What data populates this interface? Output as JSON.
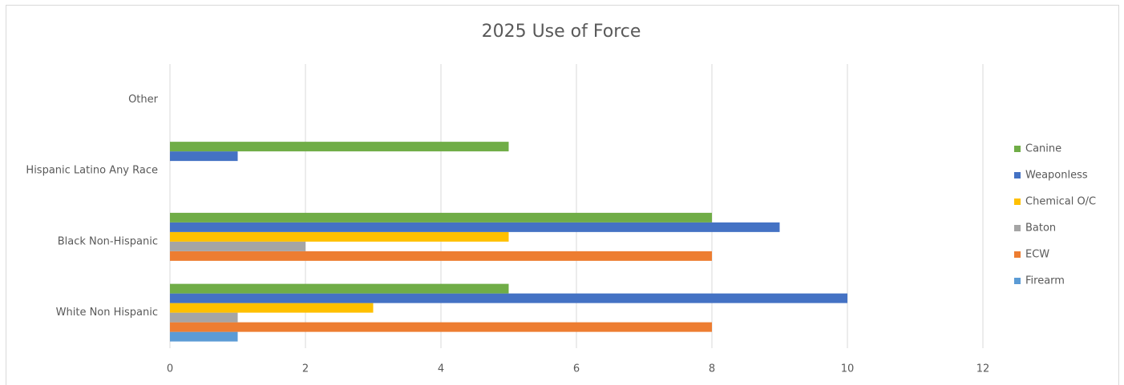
{
  "chart_data": {
    "type": "hbar",
    "title": "2025 Use of Force",
    "categories": [
      "White Non Hispanic",
      "Black Non-Hispanic",
      "Hispanic Latino Any Race",
      "Other"
    ],
    "series": [
      {
        "name": "Firearm",
        "color": "#5b9bd5",
        "values": [
          1,
          0,
          0,
          0
        ]
      },
      {
        "name": "ECW",
        "color": "#ed7d31",
        "values": [
          8,
          8,
          0,
          0
        ]
      },
      {
        "name": "Baton",
        "color": "#a5a5a5",
        "values": [
          1,
          2,
          0,
          0
        ]
      },
      {
        "name": "Chemical O/C",
        "color": "#ffc000",
        "values": [
          3,
          5,
          0,
          0
        ]
      },
      {
        "name": "Weaponless",
        "color": "#4472c4",
        "values": [
          10,
          9,
          1,
          0
        ]
      },
      {
        "name": "Canine",
        "color": "#70ad47",
        "values": [
          5,
          8,
          5,
          0
        ]
      }
    ],
    "xlim": [
      0,
      12
    ],
    "xticks": [
      0,
      2,
      4,
      6,
      8,
      10,
      12
    ],
    "grid": true,
    "legend": "right"
  }
}
